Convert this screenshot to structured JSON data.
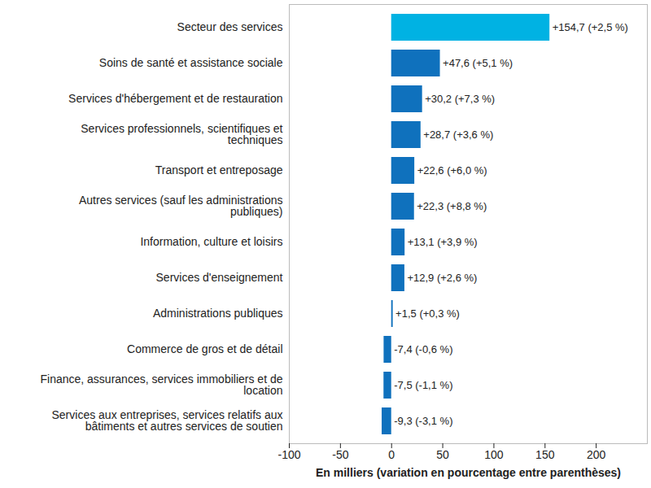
{
  "chart_data": {
    "type": "bar",
    "orientation": "horizontal",
    "xlabel": "En milliers (variation en pourcentage entre parenthèses)",
    "categories": [
      "Secteur des services",
      "Soins de santé et assistance sociale",
      "Services d'hébergement et de restauration",
      "Services professionnels, scientifiques et techniques",
      "Transport et entreposage",
      "Autres services (sauf les administrations publiques)",
      "Information, culture et loisirs",
      "Services d'enseignement",
      "Administrations publiques",
      "Commerce de gros et de détail",
      "Finance, assurances, services immobiliers et de location",
      "Services aux entreprises, services relatifs aux bâtiments et autres services de soutien"
    ],
    "values": [
      154.7,
      47.6,
      30.2,
      28.7,
      22.6,
      22.3,
      13.1,
      12.9,
      1.5,
      -7.4,
      -7.5,
      -9.3
    ],
    "value_labels": [
      "+154,7 (+2,5 %)",
      "+47,6 (+5,1 %)",
      "+30,2 (+7,3 %)",
      "+28,7 (+3,6 %)",
      "+22,6 (+6,0 %)",
      "+22,3 (+8,8 %)",
      "+13,1 (+3,9 %)",
      "+12,9 (+2,6 %)",
      "+1,5 (+0,3 %)",
      "-7,4 (-0,6 %)",
      "-7,5 (-1,1 %)",
      "-9,3 (-3,1 %)"
    ],
    "data_labels": true,
    "colors": [
      "#00b2e3",
      "#0f71bd",
      "#0f71bd",
      "#0f71bd",
      "#0f71bd",
      "#0f71bd",
      "#0f71bd",
      "#0f71bd",
      "#0f71bd",
      "#0f71bd",
      "#0f71bd",
      "#0f71bd"
    ],
    "xlim": [
      -100,
      250
    ],
    "xticks": [
      -100,
      -50,
      0,
      50,
      100,
      150,
      200
    ],
    "grid": false
  }
}
